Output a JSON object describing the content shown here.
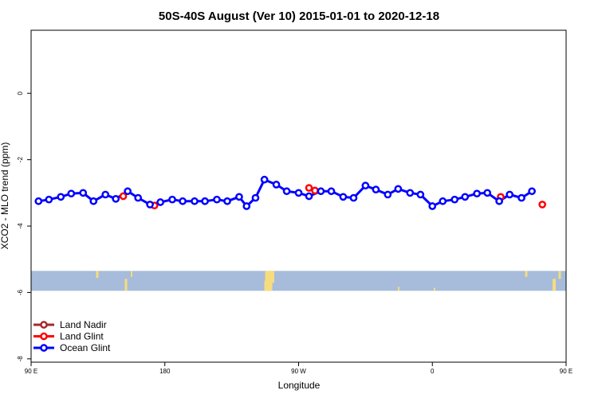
{
  "chart_data": {
    "type": "line",
    "title": "50S-40S August (Ver 10)   2015-01-01 to 2020-12-18",
    "xlabel": "Longitude",
    "ylabel": "XCO2 - MLO trend (ppm)",
    "xlim": [
      90,
      450
    ],
    "ylim": [
      -8.1,
      1.9
    ],
    "xticks": [
      {
        "value": 90,
        "label": "90 E"
      },
      {
        "value": 180,
        "label": "180"
      },
      {
        "value": 270,
        "label": "90 W"
      },
      {
        "value": 360,
        "label": "0"
      },
      {
        "value": 450,
        "label": "90 E"
      },
      {
        "value": 540,
        "label": "180"
      }
    ],
    "yticks": [
      {
        "value": 0,
        "label": "0"
      },
      {
        "value": -2,
        "label": "-2"
      },
      {
        "value": -4,
        "label": "-4"
      },
      {
        "value": -6,
        "label": "-6"
      },
      {
        "value": -8,
        "label": "-8"
      }
    ],
    "map_strip": {
      "lat_range": [
        -50,
        -40
      ],
      "y_range": [
        -5.35,
        -5.95
      ],
      "ocean_color": "#a7bcdb",
      "land_color": "#f6dc7c"
    },
    "legend_position": "bottom-left",
    "series": [
      {
        "name": "Land Nadir",
        "color": "#a52a2a",
        "points": []
      },
      {
        "name": "Land Glint",
        "color": "#ff0000",
        "points": [
          [
            152,
            -3.1
          ],
          [
            173,
            -3.38
          ],
          [
            277,
            -2.85
          ],
          [
            281,
            -2.93
          ],
          [
            406,
            -3.12
          ],
          [
            434,
            -3.35
          ]
        ]
      },
      {
        "name": "Ocean Glint",
        "color": "#0000ff",
        "points": [
          [
            95,
            -3.25
          ],
          [
            102,
            -3.2
          ],
          [
            110,
            -3.12
          ],
          [
            117,
            -3.02
          ],
          [
            125,
            -3.0
          ],
          [
            132,
            -3.25
          ],
          [
            140,
            -3.05
          ],
          [
            147,
            -3.18
          ],
          [
            155,
            -2.95
          ],
          [
            162,
            -3.15
          ],
          [
            170,
            -3.35
          ],
          [
            177,
            -3.28
          ],
          [
            185,
            -3.2
          ],
          [
            192,
            -3.25
          ],
          [
            200,
            -3.25
          ],
          [
            207,
            -3.25
          ],
          [
            215,
            -3.2
          ],
          [
            222,
            -3.25
          ],
          [
            230,
            -3.12
          ],
          [
            235,
            -3.4
          ],
          [
            241,
            -3.15
          ],
          [
            247,
            -2.6
          ],
          [
            255,
            -2.75
          ],
          [
            262,
            -2.95
          ],
          [
            270,
            -3.0
          ],
          [
            277,
            -3.1
          ],
          [
            285,
            -2.95
          ],
          [
            292,
            -2.95
          ],
          [
            300,
            -3.12
          ],
          [
            307,
            -3.15
          ],
          [
            315,
            -2.78
          ],
          [
            322,
            -2.9
          ],
          [
            330,
            -3.05
          ],
          [
            337,
            -2.88
          ],
          [
            345,
            -3.0
          ],
          [
            352,
            -3.05
          ],
          [
            360,
            -3.4
          ],
          [
            367,
            -3.25
          ],
          [
            375,
            -3.2
          ],
          [
            382,
            -3.12
          ],
          [
            390,
            -3.02
          ],
          [
            397,
            -3.0
          ],
          [
            405,
            -3.25
          ],
          [
            412,
            -3.05
          ],
          [
            420,
            -3.15
          ],
          [
            427,
            -2.95
          ]
        ]
      }
    ]
  }
}
